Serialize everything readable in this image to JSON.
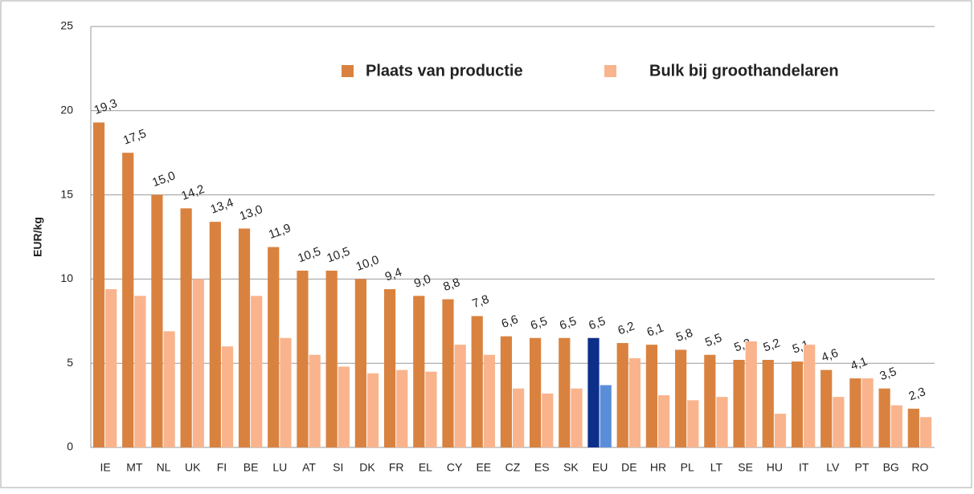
{
  "chart_data": {
    "type": "bar",
    "y_label": "EUR/kg",
    "categories": [
      "IE",
      "MT",
      "NL",
      "UK",
      "FI",
      "BE",
      "LU",
      "AT",
      "SI",
      "DK",
      "FR",
      "EL",
      "CY",
      "EE",
      "CZ",
      "ES",
      "SK",
      "EU",
      "DE",
      "HR",
      "PL",
      "LT",
      "SE",
      "HU",
      "IT",
      "LV",
      "PT",
      "BG",
      "RO"
    ],
    "series": [
      {
        "name": "Plaats van productie",
        "color": "#d9823f",
        "highlight_color": "#0d2f8a",
        "values": [
          19.3,
          17.5,
          15.0,
          14.2,
          13.4,
          13.0,
          11.9,
          10.5,
          10.5,
          10.0,
          9.4,
          9.0,
          8.8,
          7.8,
          6.6,
          6.5,
          6.5,
          6.5,
          6.2,
          6.1,
          5.8,
          5.5,
          5.2,
          5.2,
          5.1,
          4.6,
          4.1,
          3.5,
          2.3
        ],
        "value_labels": [
          "19,3",
          "17,5",
          "15,0",
          "14,2",
          "13,4",
          "13,0",
          "11,9",
          "10,5",
          "10,5",
          "10,0",
          "9,4",
          "9,0",
          "8,8",
          "7,8",
          "6,6",
          "6,5",
          "6,5",
          "6,5",
          "6,2",
          "6,1",
          "5,8",
          "5,5",
          "5,2",
          "5,2",
          "5,1",
          "4,6",
          "4,1",
          "3,5",
          "2,3"
        ]
      },
      {
        "name": "Bulk bij groothandelaren",
        "color": "#f9b48d",
        "highlight_color": "#5b8ed8",
        "values": [
          9.4,
          9.0,
          6.9,
          10.0,
          6.0,
          9.0,
          6.5,
          5.5,
          4.8,
          4.4,
          4.6,
          4.5,
          6.1,
          5.5,
          3.5,
          3.2,
          3.5,
          3.7,
          5.3,
          3.1,
          2.8,
          3.0,
          6.3,
          2.0,
          6.1,
          3.0,
          4.1,
          2.5,
          1.8
        ]
      }
    ],
    "highlight": "EU",
    "ylim": [
      0,
      25
    ],
    "yticks": [
      0,
      5,
      10,
      15,
      20,
      25
    ],
    "grid": true
  }
}
